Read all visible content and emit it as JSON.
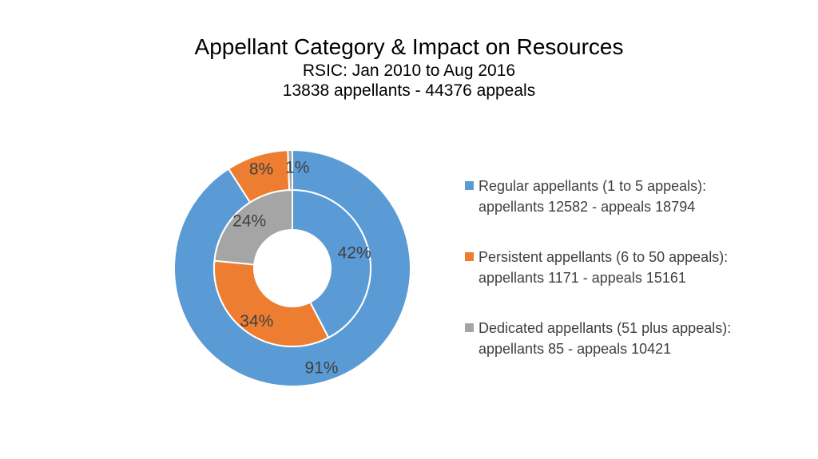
{
  "header": {
    "title": "Appellant Category & Impact on Resources",
    "subtitle_1": "RSIC: Jan 2010 to Aug 2016",
    "subtitle_2": "13838 appellants - 44376 appeals"
  },
  "colors": {
    "regular": "#5B9BD5",
    "persistent": "#ED7D31",
    "dedicated": "#A5A5A5"
  },
  "chart_data": {
    "type": "donut",
    "title": "Appellant Category & Impact on Resources",
    "subtitle": [
      "RSIC: Jan 2010 to Aug 2016",
      "13838 appellants - 44376 appeals"
    ],
    "legend_position": "right",
    "categories": [
      "Regular appellants",
      "Persistent appellants",
      "Dedicated appellants"
    ],
    "legend": [
      {
        "line1": "Regular appellants (1 to 5 appeals):",
        "line2": "appellants 12582 - appeals 18794"
      },
      {
        "line1": "Persistent appellants (6 to 50 appeals):",
        "line2": "appellants 1171 - appeals 15161"
      },
      {
        "line1": "Dedicated appellants (51 plus appeals):",
        "line2": "appellants 85 - appeals 10421"
      }
    ],
    "series": [
      {
        "ring": "inner",
        "values": [
          18794,
          15161,
          10421
        ],
        "labels": [
          "42%",
          "34%",
          "24%"
        ]
      },
      {
        "ring": "outer",
        "values": [
          12582,
          1171,
          85
        ],
        "labels": [
          "91%",
          "8%",
          "1%"
        ]
      }
    ]
  }
}
